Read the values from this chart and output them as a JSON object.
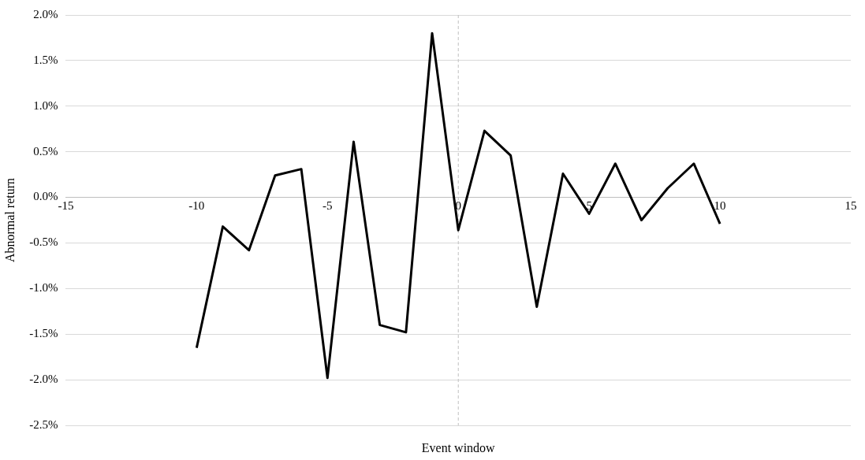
{
  "chart_data": {
    "type": "line",
    "xlabel": "Event window",
    "ylabel": "Abnormal return",
    "x": [
      -10,
      -9,
      -8,
      -7,
      -6,
      -5,
      -4,
      -3,
      -2,
      -1,
      0,
      1,
      2,
      3,
      4,
      5,
      6,
      7,
      8,
      9,
      10
    ],
    "series": [
      {
        "color": "#000000",
        "values": [
          -1.65,
          -0.32,
          -0.58,
          0.24,
          0.31,
          -1.98,
          0.61,
          -1.4,
          -1.48,
          1.8,
          -0.36,
          0.73,
          0.46,
          -1.2,
          0.26,
          -0.18,
          0.37,
          -0.25,
          0.1,
          0.37,
          -0.29
        ]
      }
    ],
    "xlim": [
      -15,
      15
    ],
    "xticks": [
      -15,
      -10,
      -5,
      0,
      5,
      10,
      15
    ],
    "ylim": [
      -2.5,
      2
    ],
    "yticks": [
      {
        "value": -2.5,
        "label": "-2.5%"
      },
      {
        "value": -2,
        "label": "-2.0%"
      },
      {
        "value": -1.5,
        "label": "-1.5%"
      },
      {
        "value": -1,
        "label": "-1.0%"
      },
      {
        "value": -0.5,
        "label": "-0.5%"
      },
      {
        "value": 0,
        "label": "0.0%"
      },
      {
        "value": 0.5,
        "label": "0.5%"
      },
      {
        "value": 1,
        "label": "1.0%"
      },
      {
        "value": 1.5,
        "label": "1.5%"
      },
      {
        "value": 2,
        "label": "2.0%"
      }
    ],
    "ref_lines": [
      {
        "axis": "x",
        "value": 0,
        "color": "#bfbfbf",
        "line_style": "dashed"
      }
    ],
    "grid": "y",
    "legend": false,
    "marker": "none",
    "line_style": "solid"
  }
}
